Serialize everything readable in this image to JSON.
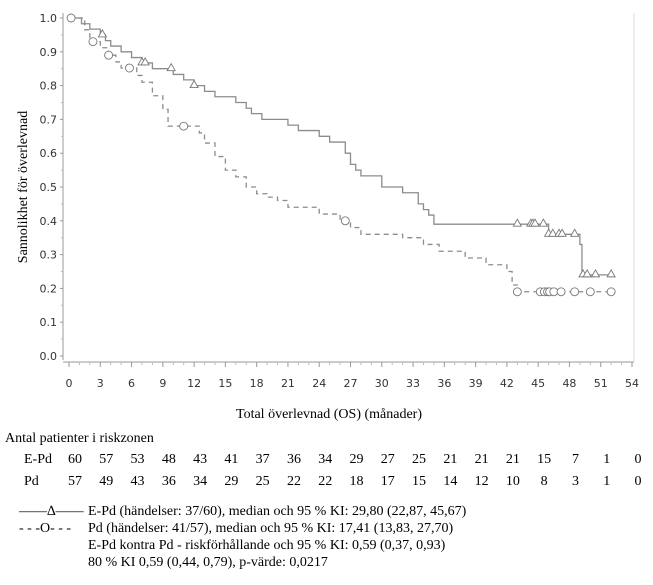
{
  "chart_data": {
    "type": "line",
    "subtype": "kaplan-meier",
    "title": "",
    "xlabel": "Total överlevnad (OS) (månader)",
    "ylabel": "Sannolikhet för överlevnad",
    "xlim": [
      0,
      54
    ],
    "ylim": [
      0,
      1.0
    ],
    "xticks": [
      0,
      3,
      6,
      9,
      12,
      15,
      18,
      21,
      24,
      27,
      30,
      33,
      36,
      39,
      42,
      45,
      48,
      51,
      54
    ],
    "yticks": [
      "0.0",
      "0.1",
      "0.2",
      "0.3",
      "0.4",
      "0.5",
      "0.6",
      "0.7",
      "0.8",
      "0.9",
      "1.0"
    ],
    "grid": false,
    "series": [
      {
        "name": "E-Pd",
        "style": "solid",
        "marker": "triangle",
        "color": "#8c8c8c",
        "steps": [
          [
            0,
            1.0
          ],
          [
            1.2,
            0.983
          ],
          [
            2,
            0.967
          ],
          [
            3,
            0.95
          ],
          [
            3.5,
            0.933
          ],
          [
            4,
            0.917
          ],
          [
            5,
            0.9
          ],
          [
            6,
            0.883
          ],
          [
            7,
            0.867
          ],
          [
            8,
            0.85
          ],
          [
            10,
            0.833
          ],
          [
            11,
            0.817
          ],
          [
            12,
            0.8
          ],
          [
            13,
            0.783
          ],
          [
            14,
            0.767
          ],
          [
            16,
            0.75
          ],
          [
            17,
            0.733
          ],
          [
            17.5,
            0.717
          ],
          [
            18.5,
            0.7
          ],
          [
            21,
            0.683
          ],
          [
            22,
            0.667
          ],
          [
            24,
            0.65
          ],
          [
            25,
            0.633
          ],
          [
            26.5,
            0.6
          ],
          [
            27,
            0.567
          ],
          [
            27.5,
            0.55
          ],
          [
            28,
            0.533
          ],
          [
            30,
            0.5
          ],
          [
            32,
            0.483
          ],
          [
            33.5,
            0.45
          ],
          [
            34,
            0.433
          ],
          [
            34.5,
            0.417
          ],
          [
            35,
            0.39
          ],
          [
            46,
            0.36
          ],
          [
            49,
            0.33
          ],
          [
            49.2,
            0.24
          ],
          [
            52,
            0.24
          ]
        ],
        "censored": [
          3.2,
          7.0,
          7.3,
          9.8,
          12.0,
          43.0,
          44.3,
          44.5,
          44.7,
          45.5,
          46.0,
          46.4,
          47.0,
          47.3,
          48.5,
          49.3,
          49.7,
          50.5,
          52.0
        ]
      },
      {
        "name": "Pd",
        "style": "dashed",
        "marker": "circle",
        "color": "#8c8c8c",
        "steps": [
          [
            0,
            1.0
          ],
          [
            1.5,
            0.965
          ],
          [
            2,
            0.93
          ],
          [
            3,
            0.912
          ],
          [
            3.8,
            0.89
          ],
          [
            4.5,
            0.87
          ],
          [
            5,
            0.852
          ],
          [
            6.5,
            0.83
          ],
          [
            7,
            0.81
          ],
          [
            8,
            0.77
          ],
          [
            9,
            0.73
          ],
          [
            9.5,
            0.68
          ],
          [
            12.5,
            0.66
          ],
          [
            13,
            0.63
          ],
          [
            14,
            0.59
          ],
          [
            15,
            0.55
          ],
          [
            16,
            0.53
          ],
          [
            17,
            0.5
          ],
          [
            18,
            0.48
          ],
          [
            19,
            0.47
          ],
          [
            20,
            0.46
          ],
          [
            21,
            0.44
          ],
          [
            24,
            0.42
          ],
          [
            26,
            0.4
          ],
          [
            27,
            0.38
          ],
          [
            28,
            0.36
          ],
          [
            32,
            0.35
          ],
          [
            34,
            0.33
          ],
          [
            35.5,
            0.31
          ],
          [
            38,
            0.29
          ],
          [
            40,
            0.27
          ],
          [
            42,
            0.25
          ],
          [
            42.5,
            0.21
          ],
          [
            43,
            0.19
          ],
          [
            52,
            0.19
          ]
        ],
        "censored": [
          0.2,
          2.3,
          3.8,
          5.8,
          11.0,
          26.5,
          43.0,
          45.2,
          45.6,
          45.9,
          46.1,
          46.5,
          47.2,
          48.5,
          50.0,
          52.0
        ]
      }
    ]
  },
  "risk_table": {
    "title": "Antal patienter i riskzonen",
    "rows": [
      {
        "label": "E-Pd",
        "values": [
          "60",
          "57",
          "53",
          "48",
          "43",
          "41",
          "37",
          "36",
          "34",
          "29",
          "27",
          "25",
          "21",
          "21",
          "21",
          "15",
          "7",
          "1",
          "0"
        ]
      },
      {
        "label": "Pd",
        "values": [
          "57",
          "49",
          "43",
          "36",
          "34",
          "29",
          "25",
          "22",
          "22",
          "18",
          "17",
          "15",
          "14",
          "12",
          "10",
          "8",
          "3",
          "1",
          "0"
        ]
      }
    ]
  },
  "legend": {
    "epd_symbol": "——∆——",
    "pd_symbol": "- - -O- - -",
    "lines": [
      "E-Pd (händelser: 37/60), median och 95 % KI: 29,80 (22,87, 45,67)",
      "Pd (händelser: 41/57), median och 95 % KI: 17,41 (13,83, 27,70)",
      "E-Pd kontra Pd - riskförhållande och 95 % KI: 0,59 (0,37, 0,93)",
      "80 % KI 0,59 (0,44, 0,79), p-värde: 0,0217"
    ]
  }
}
